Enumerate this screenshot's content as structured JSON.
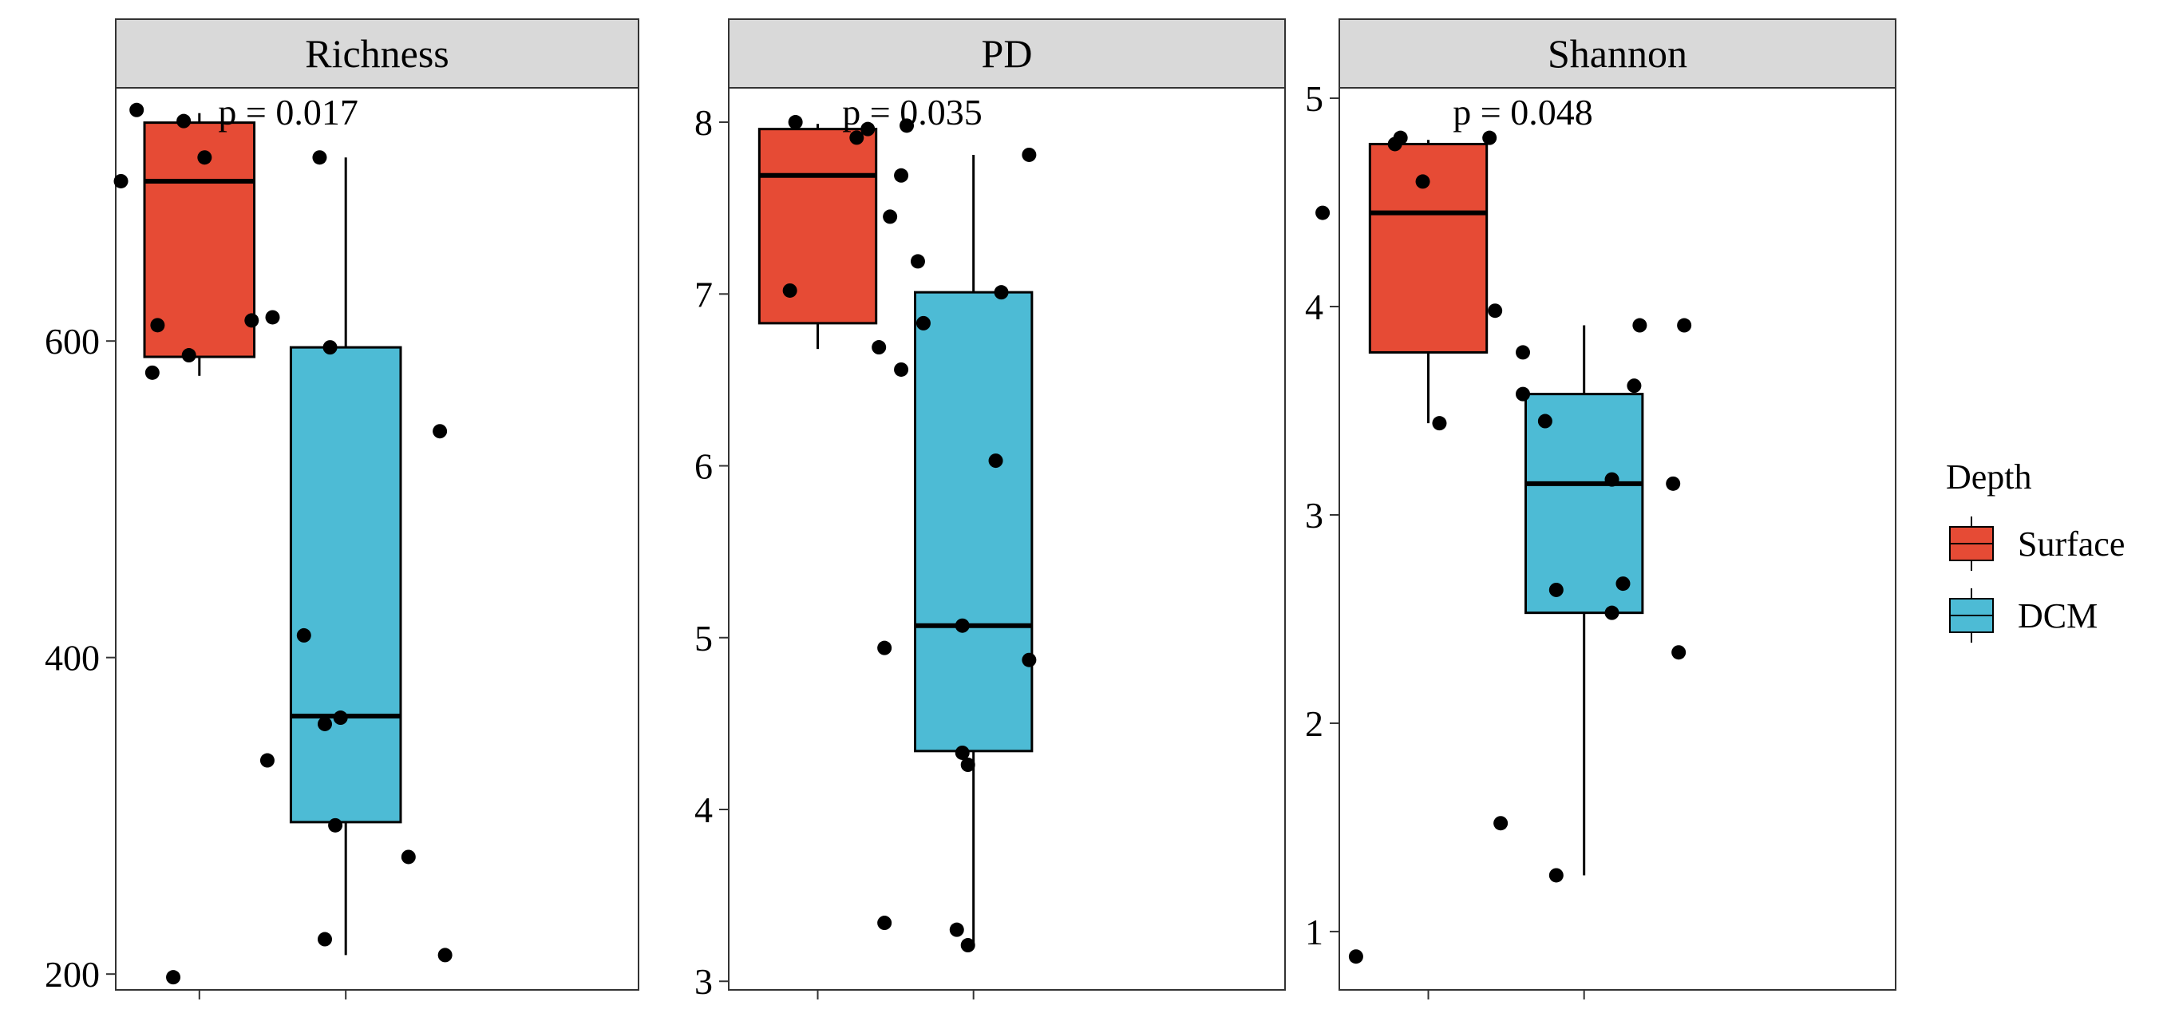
{
  "chart_data": {
    "type": "boxplot",
    "legend": {
      "title": "Depth",
      "placement": "right",
      "entries": [
        {
          "label": "Surface",
          "color": "#E64B35"
        },
        {
          "label": "DCM",
          "color": "#4DBBD5"
        }
      ]
    },
    "groups": [
      "Surface",
      "DCM"
    ],
    "x_tick_labels": [
      "",
      ""
    ],
    "facets": [
      {
        "title": "Richness",
        "p_label": "p = 0.017",
        "ylim": [
          190,
          760
        ],
        "yticks": [
          200,
          400,
          600
        ],
        "boxes": [
          {
            "group": "Surface",
            "whisker_low": 578,
            "q1": 590,
            "median": 701,
            "q3": 738,
            "whisker_high": 744
          },
          {
            "group": "DCM",
            "whisker_low": 212,
            "q1": 296,
            "median": 363,
            "q3": 596,
            "whisker_high": 716
          }
        ],
        "points": [
          {
            "group": "Surface",
            "jitter": -0.12,
            "value": 746
          },
          {
            "group": "Surface",
            "jitter": -0.03,
            "value": 739
          },
          {
            "group": "Surface",
            "jitter": 0.01,
            "value": 716
          },
          {
            "group": "Surface",
            "jitter": -0.15,
            "value": 701
          },
          {
            "group": "Surface",
            "jitter": -0.08,
            "value": 610
          },
          {
            "group": "Surface",
            "jitter": -0.02,
            "value": 591
          },
          {
            "group": "Surface",
            "jitter": -0.09,
            "value": 580
          },
          {
            "group": "Surface",
            "jitter": -0.05,
            "value": 198
          },
          {
            "group": "DCM",
            "jitter": -0.05,
            "value": 716
          },
          {
            "group": "DCM",
            "jitter": -0.18,
            "value": 613
          },
          {
            "group": "DCM",
            "jitter": -0.14,
            "value": 615
          },
          {
            "group": "DCM",
            "jitter": -0.03,
            "value": 596
          },
          {
            "group": "DCM",
            "jitter": 0.18,
            "value": 543
          },
          {
            "group": "DCM",
            "jitter": -0.08,
            "value": 414
          },
          {
            "group": "DCM",
            "jitter": -0.01,
            "value": 362
          },
          {
            "group": "DCM",
            "jitter": -0.04,
            "value": 358
          },
          {
            "group": "DCM",
            "jitter": -0.15,
            "value": 335
          },
          {
            "group": "DCM",
            "jitter": -0.02,
            "value": 294
          },
          {
            "group": "DCM",
            "jitter": 0.12,
            "value": 274
          },
          {
            "group": "DCM",
            "jitter": -0.04,
            "value": 222
          },
          {
            "group": "DCM",
            "jitter": 0.19,
            "value": 212
          }
        ]
      },
      {
        "title": "PD",
        "p_label": "p = 0.035",
        "ylim": [
          2.95,
          8.2
        ],
        "yticks": [
          3,
          4,
          5,
          6,
          7,
          8
        ],
        "boxes": [
          {
            "group": "Surface",
            "whisker_low": 6.68,
            "q1": 6.83,
            "median": 7.69,
            "q3": 7.96,
            "whisker_high": 7.99
          },
          {
            "group": "DCM",
            "whisker_low": 3.22,
            "q1": 4.34,
            "median": 5.07,
            "q3": 7.01,
            "whisker_high": 7.81
          }
        ],
        "points": [
          {
            "group": "Surface",
            "jitter": -0.04,
            "value": 8.0
          },
          {
            "group": "Surface",
            "jitter": 0.16,
            "value": 7.98
          },
          {
            "group": "Surface",
            "jitter": 0.09,
            "value": 7.96
          },
          {
            "group": "Surface",
            "jitter": 0.07,
            "value": 7.91
          },
          {
            "group": "Surface",
            "jitter": 0.15,
            "value": 7.69
          },
          {
            "group": "Surface",
            "jitter": -0.05,
            "value": 7.02
          },
          {
            "group": "Surface",
            "jitter": 0.19,
            "value": 6.83
          },
          {
            "group": "Surface",
            "jitter": 0.11,
            "value": 6.69
          },
          {
            "group": "Surface",
            "jitter": 0.12,
            "value": 3.34
          },
          {
            "group": "DCM",
            "jitter": 0.1,
            "value": 7.81
          },
          {
            "group": "DCM",
            "jitter": -0.15,
            "value": 7.45
          },
          {
            "group": "DCM",
            "jitter": -0.1,
            "value": 7.19
          },
          {
            "group": "DCM",
            "jitter": 0.05,
            "value": 7.01
          },
          {
            "group": "DCM",
            "jitter": -0.13,
            "value": 6.56
          },
          {
            "group": "DCM",
            "jitter": 0.04,
            "value": 6.03
          },
          {
            "group": "DCM",
            "jitter": -0.02,
            "value": 5.07
          },
          {
            "group": "DCM",
            "jitter": -0.16,
            "value": 4.94
          },
          {
            "group": "DCM",
            "jitter": 0.1,
            "value": 4.87
          },
          {
            "group": "DCM",
            "jitter": -0.02,
            "value": 4.33
          },
          {
            "group": "DCM",
            "jitter": -0.01,
            "value": 4.26
          },
          {
            "group": "DCM",
            "jitter": -0.03,
            "value": 3.3
          },
          {
            "group": "DCM",
            "jitter": -0.01,
            "value": 3.21
          }
        ]
      },
      {
        "title": "Shannon",
        "p_label": "p = 0.048",
        "ylim": [
          0.72,
          5.05
        ],
        "yticks": [
          1,
          2,
          3,
          4,
          5
        ],
        "boxes": [
          {
            "group": "Surface",
            "whisker_low": 3.44,
            "q1": 3.78,
            "median": 4.45,
            "q3": 4.78,
            "whisker_high": 4.8
          },
          {
            "group": "DCM",
            "whisker_low": 1.27,
            "q1": 2.53,
            "median": 3.15,
            "q3": 3.58,
            "whisker_high": 3.91
          }
        ],
        "points": [
          {
            "group": "Surface",
            "jitter": -0.05,
            "value": 4.81
          },
          {
            "group": "Surface",
            "jitter": 0.11,
            "value": 4.81
          },
          {
            "group": "Surface",
            "jitter": -0.06,
            "value": 4.78
          },
          {
            "group": "Surface",
            "jitter": -0.01,
            "value": 4.6
          },
          {
            "group": "Surface",
            "jitter": -0.19,
            "value": 4.45
          },
          {
            "group": "Surface",
            "jitter": 0.12,
            "value": 3.98
          },
          {
            "group": "Surface",
            "jitter": 0.17,
            "value": 3.78
          },
          {
            "group": "Surface",
            "jitter": 0.02,
            "value": 3.44
          },
          {
            "group": "Surface",
            "jitter": -0.13,
            "value": 0.88
          },
          {
            "group": "DCM",
            "jitter": 0.1,
            "value": 3.91
          },
          {
            "group": "DCM",
            "jitter": 0.18,
            "value": 3.91
          },
          {
            "group": "DCM",
            "jitter": 0.09,
            "value": 3.62
          },
          {
            "group": "DCM",
            "jitter": -0.11,
            "value": 3.58
          },
          {
            "group": "DCM",
            "jitter": -0.07,
            "value": 3.45
          },
          {
            "group": "DCM",
            "jitter": 0.05,
            "value": 3.17
          },
          {
            "group": "DCM",
            "jitter": 0.16,
            "value": 3.15
          },
          {
            "group": "DCM",
            "jitter": 0.07,
            "value": 2.67
          },
          {
            "group": "DCM",
            "jitter": -0.05,
            "value": 2.64
          },
          {
            "group": "DCM",
            "jitter": 0.05,
            "value": 2.53
          },
          {
            "group": "DCM",
            "jitter": 0.17,
            "value": 2.34
          },
          {
            "group": "DCM",
            "jitter": -0.15,
            "value": 1.52
          },
          {
            "group": "DCM",
            "jitter": -0.05,
            "value": 1.27
          }
        ]
      }
    ]
  }
}
